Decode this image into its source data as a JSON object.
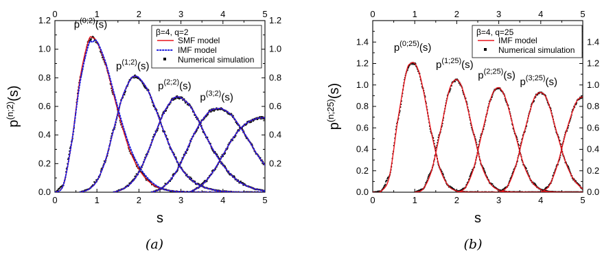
{
  "chart_data": [
    {
      "type": "line",
      "panel_label": "(a)",
      "xlabel": "s",
      "ylabel": {
        "base": "p",
        "sup": "(n;2)",
        "suffix": "(s)"
      },
      "xlim": [
        0,
        5
      ],
      "ylim": [
        0,
        1.2
      ],
      "x_ticks": [
        "0",
        "1",
        "2",
        "3",
        "4",
        "5"
      ],
      "y_ticks_left": [
        "0.0",
        "0.2",
        "0.4",
        "0.6",
        "0.8",
        "1.0",
        "1.2"
      ],
      "y_ticks_right": [
        "0.2",
        "0.4",
        "0.6",
        "0.8",
        "1.0",
        "1.2"
      ],
      "grid": false,
      "legend": {
        "placement": "top-right",
        "title": "β=4, q=2",
        "entries": [
          {
            "name": "SMF model",
            "style": "solid",
            "color": "#e8141b"
          },
          {
            "name": "IMF model",
            "style": "dotted",
            "color": "#1a1adc"
          },
          {
            "name": "Numerical simulation",
            "style": "square-marker",
            "color": "#000000"
          }
        ]
      },
      "curve_labels": [
        {
          "base": "p",
          "sup": "(0;2)",
          "suffix": "(s)",
          "x": 0.85,
          "y": 1.15
        },
        {
          "base": "p",
          "sup": "(1;2)",
          "suffix": "(s)",
          "x": 1.85,
          "y": 0.86
        },
        {
          "base": "p",
          "sup": "(2;2)",
          "suffix": "(s)",
          "x": 2.85,
          "y": 0.72
        },
        {
          "base": "p",
          "sup": "(3;2)",
          "suffix": "(s)",
          "x": 3.85,
          "y": 0.64
        }
      ],
      "series": [
        {
          "name": "n=0",
          "x": [
            0,
            0.2,
            0.4,
            0.6,
            0.8,
            0.9,
            1.0,
            1.2,
            1.4,
            1.6,
            1.8,
            2.0,
            2.2,
            2.4,
            2.6,
            2.8,
            3.0,
            3.4,
            4.0,
            5.0
          ],
          "y": [
            0,
            0.05,
            0.35,
            0.8,
            1.06,
            1.08,
            1.05,
            0.9,
            0.68,
            0.46,
            0.28,
            0.16,
            0.085,
            0.04,
            0.02,
            0.008,
            0.003,
            0,
            0,
            0
          ]
        },
        {
          "name": "n=1",
          "x": [
            0.6,
            0.8,
            1.0,
            1.2,
            1.4,
            1.6,
            1.8,
            1.9,
            2.0,
            2.2,
            2.4,
            2.6,
            2.8,
            3.0,
            3.2,
            3.4,
            3.6,
            3.8,
            4.0,
            4.4,
            5.0
          ],
          "y": [
            0,
            0.02,
            0.08,
            0.22,
            0.44,
            0.66,
            0.79,
            0.81,
            0.8,
            0.72,
            0.58,
            0.42,
            0.28,
            0.17,
            0.1,
            0.055,
            0.03,
            0.015,
            0.006,
            0,
            0
          ]
        },
        {
          "name": "n=2",
          "x": [
            1.4,
            1.6,
            1.8,
            2.0,
            2.2,
            2.4,
            2.6,
            2.8,
            2.9,
            3.0,
            3.2,
            3.4,
            3.6,
            3.8,
            4.0,
            4.2,
            4.4,
            4.6,
            4.8,
            5.0
          ],
          "y": [
            0,
            0.02,
            0.06,
            0.14,
            0.27,
            0.42,
            0.56,
            0.65,
            0.665,
            0.66,
            0.61,
            0.51,
            0.39,
            0.28,
            0.19,
            0.12,
            0.07,
            0.04,
            0.02,
            0.01
          ]
        },
        {
          "name": "n=3",
          "x": [
            2.3,
            2.5,
            2.7,
            2.9,
            3.1,
            3.3,
            3.5,
            3.7,
            3.9,
            4.0,
            4.2,
            4.4,
            4.6,
            4.8,
            5.0
          ],
          "y": [
            0,
            0.02,
            0.07,
            0.15,
            0.27,
            0.4,
            0.5,
            0.57,
            0.585,
            0.58,
            0.54,
            0.46,
            0.37,
            0.27,
            0.19
          ]
        },
        {
          "name": "n=4",
          "x": [
            3.2,
            3.4,
            3.6,
            3.8,
            4.0,
            4.2,
            4.4,
            4.6,
            4.8,
            4.9,
            5.0
          ],
          "y": [
            0,
            0.03,
            0.08,
            0.16,
            0.26,
            0.36,
            0.44,
            0.49,
            0.515,
            0.52,
            0.52
          ]
        }
      ]
    },
    {
      "type": "line",
      "panel_label": "(b)",
      "xlabel": "s",
      "ylabel": {
        "base": "p",
        "sup": "(n;25)",
        "suffix": "(s)"
      },
      "xlim": [
        0,
        5
      ],
      "ylim": [
        0,
        1.6
      ],
      "x_ticks": [
        "0",
        "1",
        "2",
        "3",
        "4",
        "5"
      ],
      "y_ticks_left": [
        "0.0",
        "0.2",
        "0.4",
        "0.6",
        "0.8",
        "1.0",
        "1.2",
        "1.4"
      ],
      "y_ticks_right": [
        "0.0",
        "0.2",
        "0.4",
        "0.6",
        "0.8",
        "1.0",
        "1.2",
        "1.4"
      ],
      "grid": false,
      "legend": {
        "placement": "top-right",
        "title": "β=4, q=25",
        "entries": [
          {
            "name": "IMF model",
            "style": "solid",
            "color": "#e8141b"
          },
          {
            "name": "Numerical simulation",
            "style": "square-marker",
            "color": "#000000"
          }
        ]
      },
      "curve_labels": [
        {
          "base": "p",
          "sup": "(0;25)",
          "suffix": "(s)",
          "x": 0.95,
          "y": 1.32
        },
        {
          "base": "p",
          "sup": "(1;25)",
          "suffix": "(s)",
          "x": 1.95,
          "y": 1.16
        },
        {
          "base": "p",
          "sup": "(2;25)",
          "suffix": "(s)",
          "x": 2.95,
          "y": 1.06
        },
        {
          "base": "p",
          "sup": "(3;25)",
          "suffix": "(s)",
          "x": 3.95,
          "y": 1.0
        }
      ],
      "series": [
        {
          "name": "n=0",
          "x": [
            0,
            0.2,
            0.4,
            0.6,
            0.8,
            0.9,
            1.0,
            1.1,
            1.2,
            1.4,
            1.6,
            1.8,
            2.0,
            2.2,
            2.6,
            5.0
          ],
          "y": [
            0,
            0.01,
            0.15,
            0.68,
            1.12,
            1.2,
            1.2,
            1.12,
            0.96,
            0.55,
            0.22,
            0.06,
            0.012,
            0.002,
            0,
            0
          ]
        },
        {
          "name": "n=1",
          "x": [
            1.0,
            1.2,
            1.4,
            1.6,
            1.8,
            1.9,
            2.0,
            2.1,
            2.2,
            2.4,
            2.6,
            2.8,
            3.0,
            3.2,
            3.6,
            5.0
          ],
          "y": [
            0,
            0.03,
            0.2,
            0.55,
            0.92,
            1.02,
            1.05,
            1.0,
            0.88,
            0.55,
            0.24,
            0.08,
            0.02,
            0.004,
            0,
            0
          ]
        },
        {
          "name": "n=2",
          "x": [
            2.0,
            2.2,
            2.4,
            2.6,
            2.8,
            2.9,
            3.0,
            3.1,
            3.2,
            3.4,
            3.6,
            3.8,
            4.0,
            4.2,
            4.6,
            5.0
          ],
          "y": [
            0,
            0.04,
            0.22,
            0.55,
            0.86,
            0.95,
            0.975,
            0.93,
            0.83,
            0.53,
            0.25,
            0.09,
            0.025,
            0.005,
            0,
            0
          ]
        },
        {
          "name": "n=3",
          "x": [
            3.0,
            3.2,
            3.4,
            3.6,
            3.8,
            3.9,
            4.0,
            4.1,
            4.2,
            4.4,
            4.6,
            4.8,
            5.0
          ],
          "y": [
            0,
            0.05,
            0.24,
            0.55,
            0.83,
            0.91,
            0.93,
            0.9,
            0.81,
            0.53,
            0.27,
            0.11,
            0.03
          ]
        },
        {
          "name": "n=4",
          "x": [
            4.0,
            4.2,
            4.4,
            4.6,
            4.8,
            4.9,
            5.0
          ],
          "y": [
            0,
            0.06,
            0.26,
            0.56,
            0.8,
            0.87,
            0.89
          ]
        }
      ]
    }
  ]
}
